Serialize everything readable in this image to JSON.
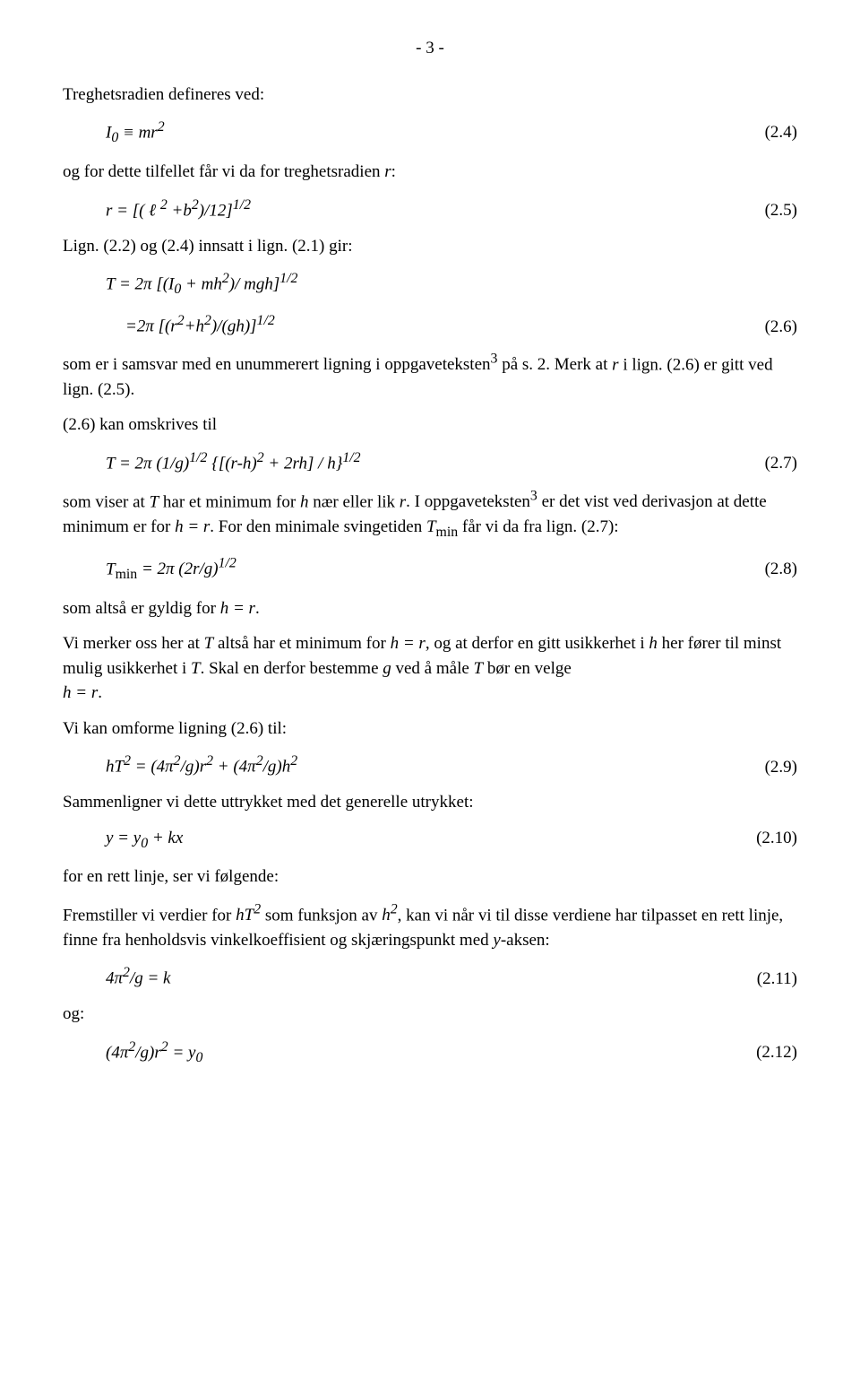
{
  "page_number": "- 3 -",
  "p1": "Treghetsradien defineres ved:",
  "eq24": {
    "indent": "",
    "body": "I₀ ≡ mr²",
    "num": "(2.4)"
  },
  "p2_a": "og for dette tilfellet får vi da for treghetsradien ",
  "p2_b": "r",
  "p2_c": ":",
  "eq25": {
    "body": "r = [( ℓ ² +b²)/12]^{1/2}",
    "num": "(2.5)"
  },
  "p3": "Lign. (2.2) og (2.4) innsatt i lign. (2.1) gir:",
  "eq26a": {
    "body": "T = 2π [(I₀ + mh²)/ mgh]^{1/2}"
  },
  "eq26b": {
    "body": "=2π [(r²+h²)/(gh)]^{1/2}",
    "num": "(2.6)"
  },
  "p4_a": "som er i samsvar med en unummerert ligning i oppgaveteksten³ på s. 2. Merk at ",
  "p4_b": "r",
  "p4_c": " i lign. (2.6) er gitt ved lign. (2.5).",
  "p5": "(2.6) kan omskrives til",
  "eq27": {
    "body": "T = 2π (1/g)^{1/2} {[(r-h)² + 2rh] / h}^{1/2}",
    "num": "(2.7)"
  },
  "p6_a": "som viser at ",
  "p6_b": "T",
  "p6_c": " har et minimum for ",
  "p6_d": "h",
  "p6_e": " nær eller lik ",
  "p6_f": "r",
  "p6_g": ". I oppgaveteksten³ er det vist ved derivasjon at dette minimum er for ",
  "p6_h": "h = r",
  "p6_i": ". For den minimale svingetiden ",
  "p6_j": "T",
  "p6_k": "min",
  "p6_l": " får vi da fra lign. (2.7):",
  "eq28": {
    "body_a": "T",
    "body_b": "min",
    "body_c": " = 2π (2r/g)^{1/2}",
    "num": "(2.8)"
  },
  "p7_a": "som altså er gyldig for ",
  "p7_b": "h = r",
  "p7_c": ".",
  "p8_a": "Vi merker oss her at ",
  "p8_b": "T",
  "p8_c": " altså har et minimum for ",
  "p8_d": "h = r",
  "p8_e": ", og at derfor en gitt usikkerhet i ",
  "p8_f": "h",
  "p8_g": " her fører til minst mulig usikkerhet i ",
  "p8_h": "T",
  "p8_i": ". Skal en derfor bestemme ",
  "p8_j": "g",
  "p8_k": " ved å måle ",
  "p8_l": "T",
  "p8_m": " bør en velge ",
  "p8_n": "h = r",
  "p8_o": ".",
  "p9": "Vi kan omforme ligning (2.6) til:",
  "eq29": {
    "body": "hT² = (4π²/g)r² + (4π²/g)h²",
    "num": "(2.9)"
  },
  "p10": "Sammenligner vi dette uttrykket med det generelle utrykket:",
  "eq210": {
    "body": "y = y₀ + kx",
    "num": "(2.10)"
  },
  "p11": "for en rett linje, ser vi følgende:",
  "p12_a": "Fremstiller vi verdier for ",
  "p12_b": "hT²",
  "p12_c": " som funksjon av ",
  "p12_d": "h²",
  "p12_e": ", kan vi når vi til disse verdiene har tilpasset en rett linje, finne fra henholdsvis vinkelkoeffisient og skjæringspunkt med ",
  "p12_f": "y",
  "p12_g": "-aksen:",
  "eq211": {
    "body": "4π²/g = k",
    "num": "(2.11)"
  },
  "p13": "og:",
  "eq212": {
    "body": "(4π²/g)r² = y₀",
    "num": "(2.12)"
  }
}
